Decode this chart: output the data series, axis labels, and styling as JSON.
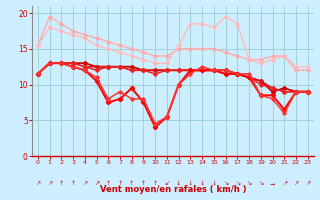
{
  "x": [
    0,
    1,
    2,
    3,
    4,
    5,
    6,
    7,
    8,
    9,
    10,
    11,
    12,
    13,
    14,
    15,
    16,
    17,
    18,
    19,
    20,
    21,
    22,
    23
  ],
  "lines": [
    {
      "y": [
        15.5,
        19.5,
        18.5,
        17.5,
        17.0,
        16.5,
        16.0,
        15.5,
        15.0,
        14.5,
        14.0,
        14.0,
        15.0,
        15.0,
        15.0,
        15.0,
        14.5,
        14.0,
        13.5,
        13.5,
        14.0,
        14.0,
        12.0,
        12.0
      ],
      "color": "#ffaaaa",
      "lw": 1.0,
      "marker": "D",
      "ms": 1.8
    },
    {
      "y": [
        15.5,
        18.0,
        17.5,
        17.0,
        16.5,
        15.5,
        15.0,
        14.5,
        14.0,
        13.5,
        13.0,
        13.0,
        15.5,
        18.5,
        18.5,
        18.0,
        19.5,
        18.5,
        13.5,
        13.0,
        13.5,
        14.0,
        12.5,
        12.5
      ],
      "color": "#ffbbbb",
      "lw": 1.0,
      "marker": "D",
      "ms": 1.8
    },
    {
      "y": [
        11.5,
        13.0,
        13.0,
        13.0,
        13.0,
        12.5,
        12.5,
        12.5,
        12.5,
        12.0,
        12.0,
        12.0,
        12.0,
        12.0,
        12.0,
        12.0,
        12.0,
        11.5,
        11.0,
        10.5,
        9.0,
        9.5,
        9.0,
        9.0
      ],
      "color": "#cc0000",
      "lw": 1.3,
      "marker": "D",
      "ms": 2.0
    },
    {
      "y": [
        11.5,
        13.0,
        13.0,
        13.0,
        12.5,
        12.5,
        12.5,
        12.5,
        12.0,
        12.0,
        12.0,
        12.0,
        12.0,
        12.0,
        12.0,
        12.0,
        12.0,
        11.5,
        11.0,
        10.5,
        9.5,
        9.0,
        9.0,
        9.0
      ],
      "color": "#dd1111",
      "lw": 1.1,
      "marker": "D",
      "ms": 1.8
    },
    {
      "y": [
        11.5,
        13.0,
        13.0,
        13.0,
        12.5,
        12.0,
        12.5,
        12.5,
        12.0,
        12.0,
        11.5,
        12.0,
        12.0,
        12.0,
        12.0,
        12.0,
        11.5,
        11.5,
        11.0,
        10.0,
        9.5,
        9.0,
        9.0,
        9.0
      ],
      "color": "#ee2222",
      "lw": 1.1,
      "marker": "D",
      "ms": 1.8
    },
    {
      "y": [
        11.5,
        13.0,
        13.0,
        12.5,
        12.0,
        10.5,
        7.5,
        8.0,
        9.5,
        7.5,
        4.0,
        5.5,
        10.0,
        12.0,
        12.0,
        12.0,
        11.5,
        11.5,
        11.0,
        8.5,
        8.5,
        6.5,
        9.0,
        9.0
      ],
      "color": "#ff0000",
      "lw": 1.4,
      "marker": "D",
      "ms": 2.2
    },
    {
      "y": [
        11.5,
        13.0,
        13.0,
        12.5,
        12.0,
        11.0,
        8.0,
        9.0,
        8.0,
        8.0,
        4.5,
        5.5,
        10.0,
        11.5,
        12.5,
        12.0,
        12.0,
        11.5,
        11.5,
        8.5,
        8.0,
        6.0,
        9.0,
        9.0
      ],
      "color": "#ff3333",
      "lw": 1.1,
      "marker": "D",
      "ms": 1.8
    }
  ],
  "arrow_symbols": [
    "↗",
    "↗",
    "↑",
    "↑",
    "↗",
    "↗",
    "↑",
    "↑",
    "↑",
    "↑",
    "↑",
    "↙",
    "↓",
    "↓",
    "↓",
    "↓",
    "↘",
    "↘",
    "↘",
    "↘",
    "→",
    "↗",
    "↗",
    "↗"
  ],
  "xlabel": "Vent moyen/en rafales ( km/h )",
  "xlim": [
    -0.5,
    23.5
  ],
  "ylim": [
    0,
    21
  ],
  "yticks": [
    0,
    5,
    10,
    15,
    20
  ],
  "xticks": [
    0,
    1,
    2,
    3,
    4,
    5,
    6,
    7,
    8,
    9,
    10,
    11,
    12,
    13,
    14,
    15,
    16,
    17,
    18,
    19,
    20,
    21,
    22,
    23
  ],
  "bg_color": "#cceeff",
  "grid_color": "#99cccc",
  "tick_color": "#cc0000",
  "label_color": "#cc0000"
}
